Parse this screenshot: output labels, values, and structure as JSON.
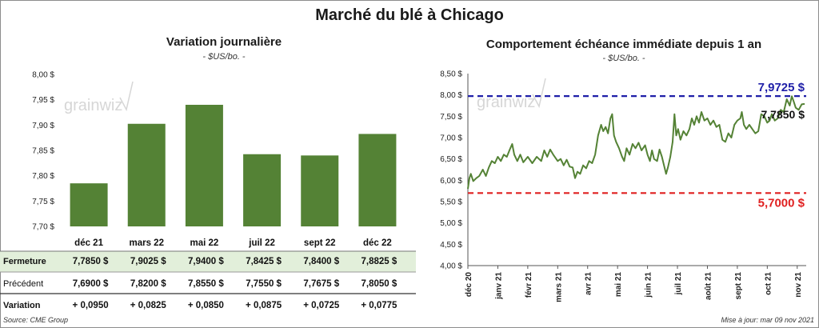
{
  "title": "Marché du blé à Chicago",
  "source": "Source: CME Group",
  "updated": "Mise à jour: mar 09 nov 2021",
  "watermark": "grainwiz",
  "colors": {
    "bar": "#548235",
    "line": "#548235",
    "high_line": "#1f1fa8",
    "low_line": "#e02020",
    "gain": "#2e8b1e",
    "highlight_row": "#e2efda"
  },
  "chart_data": [
    {
      "type": "bar",
      "title": "Variation journalière",
      "subtitle": "- $US/bo. -",
      "categories": [
        "déc 21",
        "mars 22",
        "mai 22",
        "juil 22",
        "sept 22",
        "déc 22"
      ],
      "values": [
        7.785,
        7.9025,
        7.94,
        7.8425,
        7.84,
        7.8825
      ],
      "ylim": [
        7.7,
        8.0
      ],
      "yticks": [
        "8,00 $",
        "7,95 $",
        "7,90 $",
        "7,85 $",
        "7,80 $",
        "7,75 $",
        "7,70 $"
      ],
      "grid": false,
      "table": {
        "rows": [
          {
            "label": "Fermeture",
            "values": [
              "7,7850  $",
              "7,9025  $",
              "7,9400  $",
              "7,8425  $",
              "7,8400  $",
              "7,8825  $"
            ]
          },
          {
            "label": "Précédent",
            "values": [
              "7,6900  $",
              "7,8200  $",
              "7,8550  $",
              "7,7550  $",
              "7,7675  $",
              "7,8050  $"
            ]
          },
          {
            "label": "Variation",
            "values": [
              "+ 0,0950",
              "+ 0,0825",
              "+ 0,0850",
              "+ 0,0875",
              "+ 0,0725",
              "+ 0,0775"
            ]
          }
        ]
      }
    },
    {
      "type": "line",
      "title": "Comportement  échéance immédiate depuis 1 an",
      "subtitle": "- $US/bo. -",
      "ylim": [
        4.0,
        8.5
      ],
      "yticks": [
        "8,50 $",
        "8,00 $",
        "7,50 $",
        "7,00 $",
        "6,50 $",
        "6,00 $",
        "5,50 $",
        "5,00 $",
        "4,50 $",
        "4,00 $"
      ],
      "xticks": [
        "déc 20",
        "janv 21",
        "févr 21",
        "mars 21",
        "avr 21",
        "mai 21",
        "juin 21",
        "juil 21",
        "août 21",
        "sept 21",
        "oct 21",
        "nov 21"
      ],
      "x_range_months": [
        0,
        11.3
      ],
      "series": [
        {
          "values": [
            [
              0.0,
              5.8
            ],
            [
              0.05,
              6.05
            ],
            [
              0.1,
              6.15
            ],
            [
              0.18,
              5.98
            ],
            [
              0.28,
              6.05
            ],
            [
              0.38,
              6.1
            ],
            [
              0.5,
              6.25
            ],
            [
              0.6,
              6.1
            ],
            [
              0.7,
              6.3
            ],
            [
              0.8,
              6.45
            ],
            [
              0.9,
              6.4
            ],
            [
              1.0,
              6.55
            ],
            [
              1.1,
              6.45
            ],
            [
              1.2,
              6.6
            ],
            [
              1.3,
              6.55
            ],
            [
              1.4,
              6.72
            ],
            [
              1.48,
              6.85
            ],
            [
              1.55,
              6.6
            ],
            [
              1.65,
              6.45
            ],
            [
              1.75,
              6.6
            ],
            [
              1.85,
              6.42
            ],
            [
              2.0,
              6.55
            ],
            [
              2.15,
              6.4
            ],
            [
              2.3,
              6.55
            ],
            [
              2.45,
              6.45
            ],
            [
              2.55,
              6.7
            ],
            [
              2.65,
              6.55
            ],
            [
              2.75,
              6.72
            ],
            [
              2.85,
              6.6
            ],
            [
              3.0,
              6.45
            ],
            [
              3.1,
              6.5
            ],
            [
              3.2,
              6.35
            ],
            [
              3.3,
              6.48
            ],
            [
              3.4,
              6.32
            ],
            [
              3.5,
              6.3
            ],
            [
              3.58,
              6.05
            ],
            [
              3.66,
              6.2
            ],
            [
              3.75,
              6.15
            ],
            [
              3.85,
              6.35
            ],
            [
              3.95,
              6.28
            ],
            [
              4.05,
              6.45
            ],
            [
              4.15,
              6.4
            ],
            [
              4.25,
              6.6
            ],
            [
              4.35,
              7.05
            ],
            [
              4.45,
              7.3
            ],
            [
              4.52,
              7.15
            ],
            [
              4.6,
              7.25
            ],
            [
              4.68,
              7.1
            ],
            [
              4.76,
              7.45
            ],
            [
              4.82,
              7.55
            ],
            [
              4.88,
              7.05
            ],
            [
              4.95,
              6.9
            ],
            [
              5.05,
              6.75
            ],
            [
              5.15,
              6.55
            ],
            [
              5.22,
              6.45
            ],
            [
              5.3,
              6.75
            ],
            [
              5.4,
              6.6
            ],
            [
              5.5,
              6.85
            ],
            [
              5.6,
              6.75
            ],
            [
              5.7,
              6.88
            ],
            [
              5.8,
              6.7
            ],
            [
              5.92,
              6.82
            ],
            [
              6.0,
              6.6
            ],
            [
              6.08,
              6.45
            ],
            [
              6.15,
              6.7
            ],
            [
              6.22,
              6.5
            ],
            [
              6.32,
              6.45
            ],
            [
              6.4,
              6.72
            ],
            [
              6.48,
              6.55
            ],
            [
              6.55,
              6.35
            ],
            [
              6.62,
              6.15
            ],
            [
              6.68,
              6.3
            ],
            [
              6.76,
              6.55
            ],
            [
              6.84,
              6.9
            ],
            [
              6.9,
              7.55
            ],
            [
              6.96,
              7.05
            ],
            [
              7.02,
              7.2
            ],
            [
              7.1,
              6.95
            ],
            [
              7.2,
              7.15
            ],
            [
              7.3,
              7.05
            ],
            [
              7.4,
              7.2
            ],
            [
              7.48,
              7.45
            ],
            [
              7.56,
              7.3
            ],
            [
              7.64,
              7.5
            ],
            [
              7.72,
              7.35
            ],
            [
              7.8,
              7.6
            ],
            [
              7.9,
              7.4
            ],
            [
              8.0,
              7.45
            ],
            [
              8.1,
              7.3
            ],
            [
              8.2,
              7.4
            ],
            [
              8.3,
              7.25
            ],
            [
              8.4,
              7.3
            ],
            [
              8.5,
              6.95
            ],
            [
              8.6,
              6.9
            ],
            [
              8.7,
              7.1
            ],
            [
              8.8,
              7.0
            ],
            [
              8.9,
              7.3
            ],
            [
              9.0,
              7.4
            ],
            [
              9.1,
              7.45
            ],
            [
              9.15,
              7.6
            ],
            [
              9.22,
              7.3
            ],
            [
              9.3,
              7.2
            ],
            [
              9.4,
              7.3
            ],
            [
              9.5,
              7.2
            ],
            [
              9.6,
              7.1
            ],
            [
              9.7,
              7.15
            ],
            [
              9.8,
              7.55
            ],
            [
              9.9,
              7.5
            ],
            [
              10.0,
              7.35
            ],
            [
              10.08,
              7.4
            ],
            [
              10.15,
              7.55
            ],
            [
              10.25,
              7.4
            ],
            [
              10.35,
              7.45
            ],
            [
              10.45,
              7.65
            ],
            [
              10.55,
              7.6
            ],
            [
              10.65,
              7.9
            ],
            [
              10.75,
              7.75
            ],
            [
              10.82,
              7.97
            ],
            [
              10.88,
              7.85
            ],
            [
              10.95,
              7.7
            ],
            [
              11.05,
              7.65
            ],
            [
              11.15,
              7.78
            ],
            [
              11.25,
              7.79
            ]
          ]
        }
      ],
      "reference_lines": [
        {
          "y": 7.9725,
          "label": "7,9725  $",
          "style": "dashed",
          "color": "#1f1fa8"
        },
        {
          "y": 5.7,
          "label": "5,7000  $",
          "style": "dashed",
          "color": "#e02020"
        }
      ],
      "last_value": {
        "y": 7.785,
        "label": "7,7850 $"
      }
    }
  ]
}
